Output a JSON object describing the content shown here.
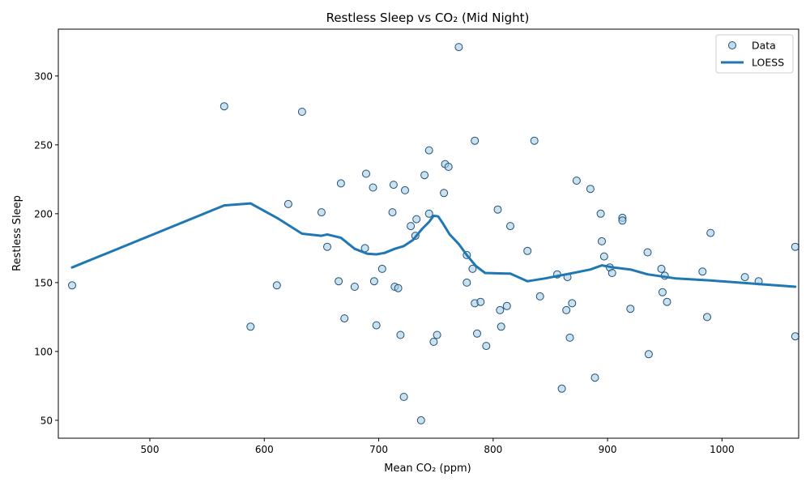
{
  "chart_data": {
    "type": "scatter",
    "title": "Restless Sleep vs CO₂ (Mid Night)",
    "xlabel": "Mean CO₂ (ppm)",
    "ylabel": "Restless Sleep",
    "xlim": [
      420,
      1067
    ],
    "ylim": [
      37,
      334
    ],
    "xticks": [
      500,
      600,
      700,
      800,
      900,
      1000
    ],
    "yticks": [
      50,
      100,
      150,
      200,
      250,
      300
    ],
    "grid": false,
    "legend_position": "top-right",
    "legend": [
      "Data",
      "LOESS"
    ],
    "colors": {
      "point_fill": "#a6cee3",
      "point_edge": "#1f4e79",
      "loess_line": "#1f77b4"
    },
    "series": [
      {
        "name": "Data",
        "kind": "scatter",
        "points": [
          [
            432,
            148
          ],
          [
            565,
            278
          ],
          [
            588,
            118
          ],
          [
            611,
            148
          ],
          [
            621,
            207
          ],
          [
            633,
            274
          ],
          [
            650,
            201
          ],
          [
            655,
            176
          ],
          [
            665,
            151
          ],
          [
            667,
            222
          ],
          [
            670,
            124
          ],
          [
            679,
            147
          ],
          [
            688,
            175
          ],
          [
            689,
            229
          ],
          [
            695,
            219
          ],
          [
            696,
            151
          ],
          [
            698,
            119
          ],
          [
            703,
            160
          ],
          [
            712,
            201
          ],
          [
            713,
            221
          ],
          [
            714,
            147
          ],
          [
            717,
            146
          ],
          [
            719,
            112
          ],
          [
            722,
            67
          ],
          [
            723,
            217
          ],
          [
            728,
            191
          ],
          [
            732,
            184
          ],
          [
            733,
            196
          ],
          [
            737,
            50
          ],
          [
            740,
            228
          ],
          [
            744,
            200
          ],
          [
            744,
            246
          ],
          [
            748,
            107
          ],
          [
            751,
            112
          ],
          [
            757,
            215
          ],
          [
            758,
            236
          ],
          [
            761,
            234
          ],
          [
            770,
            321
          ],
          [
            777,
            170
          ],
          [
            777,
            150
          ],
          [
            782,
            160
          ],
          [
            784,
            253
          ],
          [
            784,
            135
          ],
          [
            786,
            113
          ],
          [
            789,
            136
          ],
          [
            794,
            104
          ],
          [
            804,
            203
          ],
          [
            806,
            130
          ],
          [
            807,
            118
          ],
          [
            812,
            133
          ],
          [
            815,
            191
          ],
          [
            830,
            173
          ],
          [
            836,
            253
          ],
          [
            841,
            140
          ],
          [
            856,
            156
          ],
          [
            860,
            73
          ],
          [
            864,
            130
          ],
          [
            865,
            154
          ],
          [
            867,
            110
          ],
          [
            869,
            135
          ],
          [
            873,
            224
          ],
          [
            885,
            218
          ],
          [
            889,
            81
          ],
          [
            894,
            200
          ],
          [
            895,
            180
          ],
          [
            897,
            169
          ],
          [
            902,
            161
          ],
          [
            904,
            157
          ],
          [
            913,
            197
          ],
          [
            913,
            195
          ],
          [
            920,
            131
          ],
          [
            935,
            172
          ],
          [
            936,
            98
          ],
          [
            947,
            160
          ],
          [
            948,
            143
          ],
          [
            950,
            155
          ],
          [
            952,
            136
          ],
          [
            983,
            158
          ],
          [
            987,
            125
          ],
          [
            990,
            186
          ],
          [
            1020,
            154
          ],
          [
            1032,
            151
          ],
          [
            1064,
            176
          ],
          [
            1064,
            111
          ]
        ]
      },
      {
        "name": "LOESS",
        "kind": "line",
        "points": [
          [
            432,
            161
          ],
          [
            565,
            206
          ],
          [
            588,
            207.5
          ],
          [
            611,
            197
          ],
          [
            633,
            185.5
          ],
          [
            650,
            184
          ],
          [
            655,
            185
          ],
          [
            667,
            182.5
          ],
          [
            679,
            174.5
          ],
          [
            690,
            171
          ],
          [
            698,
            170.5
          ],
          [
            705,
            171.5
          ],
          [
            714,
            174.5
          ],
          [
            722,
            176.5
          ],
          [
            730,
            181
          ],
          [
            738,
            189
          ],
          [
            744,
            194
          ],
          [
            748,
            198.5
          ],
          [
            752,
            198
          ],
          [
            756,
            193
          ],
          [
            762,
            185
          ],
          [
            770,
            178
          ],
          [
            777,
            170
          ],
          [
            785,
            162
          ],
          [
            793,
            157
          ],
          [
            812,
            156.5
          ],
          [
            815,
            156.5
          ],
          [
            830,
            151
          ],
          [
            845,
            153
          ],
          [
            870,
            157
          ],
          [
            885,
            159.5
          ],
          [
            895,
            162.5
          ],
          [
            905,
            161
          ],
          [
            920,
            159.5
          ],
          [
            935,
            156
          ],
          [
            960,
            153
          ],
          [
            990,
            151.5
          ],
          [
            1064,
            147
          ]
        ]
      }
    ]
  }
}
